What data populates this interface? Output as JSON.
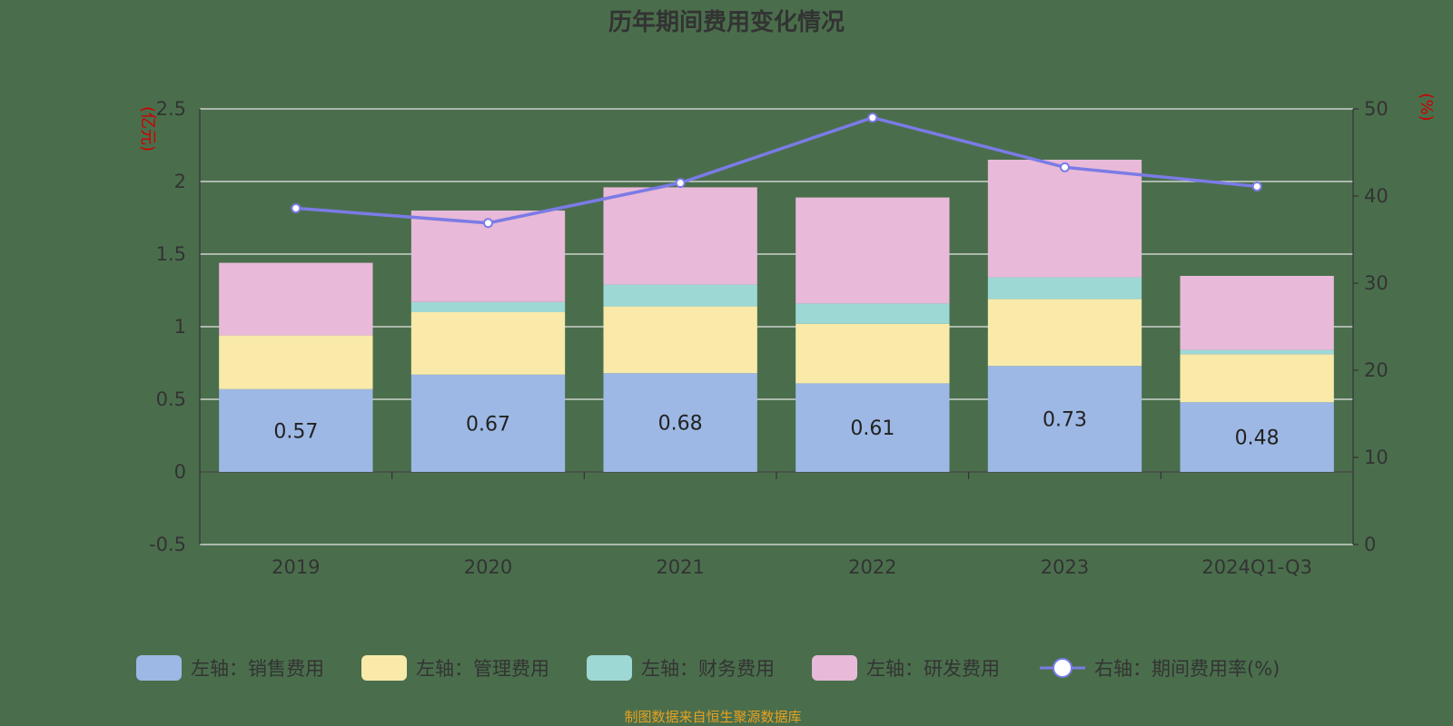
{
  "chart_data": {
    "type": "bar",
    "title": "历年期间费用变化情况",
    "categories": [
      "2019",
      "2020",
      "2021",
      "2022",
      "2023",
      "2024Q1-Q3"
    ],
    "left_axis": {
      "unit_label": "(亿元)",
      "ylim": [
        -0.5,
        2.5
      ],
      "ticks": [
        "-0.5",
        "0",
        "0.5",
        "1",
        "1.5",
        "2",
        "2.5"
      ],
      "tick_values": [
        -0.5,
        0,
        0.5,
        1,
        1.5,
        2,
        2.5
      ]
    },
    "right_axis": {
      "unit_label": "(%)",
      "ylim": [
        0,
        50
      ],
      "ticks": [
        "0",
        "10",
        "20",
        "30",
        "40",
        "50"
      ],
      "tick_values": [
        0,
        10,
        20,
        30,
        40,
        50
      ]
    },
    "series": [
      {
        "name": "左轴：销售费用",
        "color": "#9db8e4",
        "values": [
          0.57,
          0.67,
          0.68,
          0.61,
          0.73,
          0.48
        ],
        "labels": [
          "0.57",
          "0.67",
          "0.68",
          "0.61",
          "0.73",
          "0.48"
        ]
      },
      {
        "name": "左轴：管理费用",
        "color": "#f9eaaa",
        "values": [
          0.37,
          0.43,
          0.46,
          0.41,
          0.46,
          0.33
        ]
      },
      {
        "name": "左轴：财务费用",
        "color": "#9ed8d5",
        "values": [
          0.0,
          0.07,
          0.15,
          0.14,
          0.15,
          0.03
        ]
      },
      {
        "name": "左轴：研发费用",
        "color": "#e8b9d8",
        "values": [
          0.5,
          0.63,
          0.67,
          0.73,
          0.81,
          0.51
        ]
      }
    ],
    "line": {
      "name": "右轴：期间费用率(%)",
      "color": "#7b7be6",
      "values": [
        38.6,
        36.9,
        41.5,
        49.0,
        43.3,
        41.1
      ]
    },
    "grid": true,
    "legend_position": "bottom"
  },
  "source": "制图数据来自恒生聚源数据库"
}
